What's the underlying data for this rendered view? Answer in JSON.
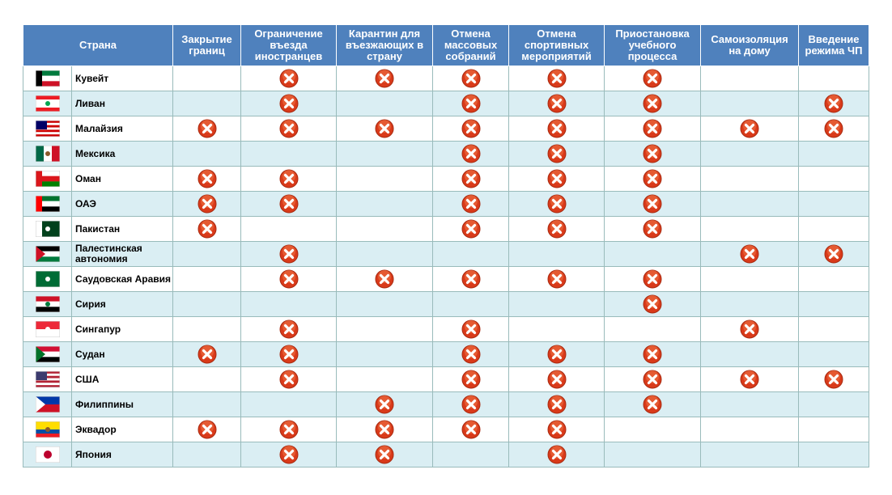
{
  "table": {
    "header": [
      "Страна",
      "Закрытие границ",
      "Ограничение въезда иностранцев",
      "Карантин для въезжающих в страну",
      "Отмена массовых собраний",
      "Отмена спортивных мероприятий",
      "Приостановка учебного процесса",
      "Самоизоляция на дому",
      "Введение режима ЧП"
    ],
    "rows": [
      {
        "country": "Кувейт",
        "marks": [
          false,
          true,
          true,
          true,
          true,
          true,
          false,
          false
        ]
      },
      {
        "country": "Ливан",
        "marks": [
          false,
          true,
          false,
          true,
          true,
          true,
          false,
          true
        ]
      },
      {
        "country": "Малайзия",
        "marks": [
          true,
          true,
          true,
          true,
          true,
          true,
          true,
          true
        ]
      },
      {
        "country": "Мексика",
        "marks": [
          false,
          false,
          false,
          true,
          true,
          true,
          false,
          false
        ]
      },
      {
        "country": "Оман",
        "marks": [
          true,
          true,
          false,
          true,
          true,
          true,
          false,
          false
        ]
      },
      {
        "country": "ОАЭ",
        "marks": [
          true,
          true,
          false,
          true,
          true,
          true,
          false,
          false
        ]
      },
      {
        "country": "Пакистан",
        "marks": [
          true,
          false,
          false,
          true,
          true,
          true,
          false,
          false
        ]
      },
      {
        "country": "Палестинская автономия",
        "marks": [
          false,
          true,
          false,
          false,
          false,
          false,
          true,
          true
        ]
      },
      {
        "country": "Саудовская Аравия",
        "marks": [
          false,
          true,
          true,
          true,
          true,
          true,
          false,
          false
        ]
      },
      {
        "country": "Сирия",
        "marks": [
          false,
          false,
          false,
          false,
          false,
          true,
          false,
          false
        ]
      },
      {
        "country": "Сингапур",
        "marks": [
          false,
          true,
          false,
          true,
          false,
          false,
          true,
          false
        ]
      },
      {
        "country": "Судан",
        "marks": [
          true,
          true,
          false,
          true,
          true,
          true,
          false,
          false
        ]
      },
      {
        "country": "США",
        "marks": [
          false,
          true,
          false,
          true,
          true,
          true,
          true,
          true
        ]
      },
      {
        "country": "Филиппины",
        "marks": [
          false,
          false,
          true,
          true,
          true,
          true,
          false,
          false
        ]
      },
      {
        "country": "Эквадор",
        "marks": [
          true,
          true,
          true,
          true,
          true,
          false,
          false,
          false
        ]
      },
      {
        "country": "Япония",
        "marks": [
          false,
          true,
          true,
          false,
          true,
          false,
          false,
          false
        ]
      }
    ]
  }
}
